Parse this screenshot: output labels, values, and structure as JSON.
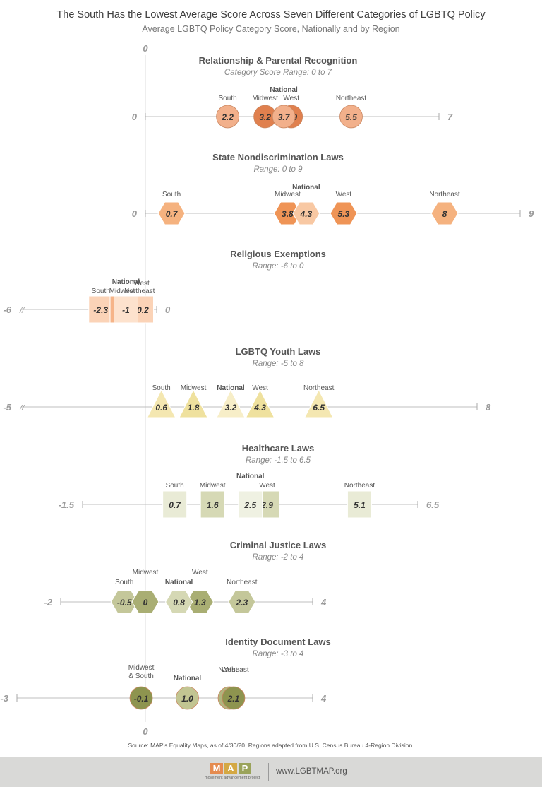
{
  "title": "The South Has the Lowest Average Score Across Seven Different Categories of LGBTQ Policy",
  "subtitle": "Average LGBTQ Policy Category Score, Nationally and by Region",
  "zero_axis_label": "0",
  "source": "Source: MAP's Equality Maps, as of 4/30/20. Regions adapted from U.S. Census Bureau 4-Region Division.",
  "footer": {
    "logo_letters": [
      "M",
      "A",
      "P"
    ],
    "logo_tagline": "movement advancement project",
    "url": "www.LGBTMAP.org",
    "logo_colors": [
      "#e58b4f",
      "#d4a843",
      "#9aa35a"
    ]
  },
  "chart_data": [
    {
      "type": "scatter",
      "title": "Relationship & Parental Recognition",
      "range_label": "Category Score Range: 0 to 7",
      "range": [
        0,
        7
      ],
      "min_label": "0",
      "max_label": "7",
      "marker": "circle",
      "points": [
        {
          "name": "South",
          "value": 2.2,
          "label": "2.2",
          "color": "#f2b08b"
        },
        {
          "name": "Midwest",
          "value": 3.2,
          "label": "3.2",
          "color": "#e0804e"
        },
        {
          "name": "National",
          "value": 3.7,
          "label": "3.7",
          "color": "#f2b08b"
        },
        {
          "name": "West",
          "value": 3.9,
          "label": "3.9",
          "color": "#e0804e"
        },
        {
          "name": "Northeast",
          "value": 5.5,
          "label": "5.5",
          "color": "#f2b08b"
        }
      ]
    },
    {
      "type": "scatter",
      "title": "State Nondiscrimination Laws",
      "range_label": "Range: 0 to 9",
      "range": [
        0,
        9
      ],
      "min_label": "0",
      "max_label": "9",
      "marker": "hexagon",
      "points": [
        {
          "name": "South",
          "value": 0.7,
          "label": "0.7",
          "color": "#f5b27f"
        },
        {
          "name": "Midwest",
          "value": 3.8,
          "label": "3.8",
          "color": "#ef9456"
        },
        {
          "name": "National",
          "value": 4.3,
          "label": "4.3",
          "color": "#f8c8a3"
        },
        {
          "name": "West",
          "value": 5.3,
          "label": "5.3",
          "color": "#ef9456"
        },
        {
          "name": "Northeast",
          "value": 8,
          "label": "8",
          "color": "#f5b27f"
        }
      ]
    },
    {
      "type": "scatter",
      "title": "Religious Exemptions",
      "range_label": "Range: -6 to 0",
      "range": [
        -6,
        0
      ],
      "min_label": "-6",
      "max_label": "0",
      "marker": "square",
      "points": [
        {
          "name": "South",
          "value": -2.3,
          "label": "-2.3",
          "color": "#fbd3b7"
        },
        {
          "name": "Midwest",
          "value": -1.2,
          "label": "-1.2",
          "color": "#f6b488"
        },
        {
          "name": "National",
          "value": -1,
          "label": "-1",
          "color": "#fde2cd"
        },
        {
          "name": "Northeast",
          "value": -0.3,
          "label": "-0.3",
          "color": "#f6b488"
        },
        {
          "name": "West",
          "value": -0.2,
          "label": "-0.2",
          "color": "#fbd3b7"
        }
      ]
    },
    {
      "type": "scatter",
      "title": "LGBTQ Youth Laws",
      "range_label": "Range: -5 to 8",
      "range": [
        -5,
        8
      ],
      "min_label": "-5",
      "max_label": "8",
      "marker": "triangle",
      "points": [
        {
          "name": "South",
          "value": 0.6,
          "label": "0.6",
          "color": "#f4e7b1"
        },
        {
          "name": "Midwest",
          "value": 1.8,
          "label": "1.8",
          "color": "#efe19e"
        },
        {
          "name": "National",
          "value": 3.2,
          "label": "3.2",
          "color": "#f7eec8"
        },
        {
          "name": "West",
          "value": 4.3,
          "label": "4.3",
          "color": "#efe19e"
        },
        {
          "name": "Northeast",
          "value": 6.5,
          "label": "6.5",
          "color": "#f4e7b1"
        }
      ]
    },
    {
      "type": "scatter",
      "title": "Healthcare Laws",
      "range_label": "Range: -1.5 to 6.5",
      "range": [
        -1.5,
        6.5
      ],
      "min_label": "-1.5",
      "max_label": "6.5",
      "marker": "square",
      "points": [
        {
          "name": "South",
          "value": 0.7,
          "label": "0.7",
          "color": "#e9ebd6"
        },
        {
          "name": "Midwest",
          "value": 1.6,
          "label": "1.6",
          "color": "#d6d9b5"
        },
        {
          "name": "National",
          "value": 2.5,
          "label": "2.5",
          "color": "#eff1e2"
        },
        {
          "name": "West",
          "value": 2.9,
          "label": "2.9",
          "color": "#d6d9b5"
        },
        {
          "name": "Northeast",
          "value": 5.1,
          "label": "5.1",
          "color": "#e9ebd6"
        }
      ]
    },
    {
      "type": "scatter",
      "title": "Criminal Justice Laws",
      "range_label": "Range: -2 to 4",
      "range": [
        -2,
        4
      ],
      "min_label": "-2",
      "max_label": "4",
      "marker": "hexagon",
      "points": [
        {
          "name": "South",
          "value": -0.5,
          "label": "-0.5",
          "color": "#c4c79a"
        },
        {
          "name": "Midwest",
          "value": 0,
          "label": "0",
          "color": "#a9ae73"
        },
        {
          "name": "National",
          "value": 0.8,
          "label": "0.8",
          "color": "#d5d8b4"
        },
        {
          "name": "West",
          "value": 1.3,
          "label": "1.3",
          "color": "#a9ae73"
        },
        {
          "name": "Northeast",
          "value": 2.3,
          "label": "2.3",
          "color": "#c4c79a"
        }
      ]
    },
    {
      "type": "scatter",
      "title": "Identity Document Laws",
      "range_label": "Range: -3 to 4",
      "range": [
        -3,
        4
      ],
      "min_label": "-3",
      "max_label": "4",
      "marker": "circle",
      "points": [
        {
          "name": "Midwest & South",
          "value": -0.1,
          "label": "-0.1",
          "color": "#8e944f"
        },
        {
          "name": "National",
          "value": 1.0,
          "label": "1.0",
          "color": "#c2c592"
        },
        {
          "name": "West",
          "value": 2.0,
          "label": "2.0",
          "color": "#b1b57e"
        },
        {
          "name": "Northeast",
          "value": 2.1,
          "label": "2.1",
          "color": "#8e944f"
        }
      ]
    }
  ]
}
